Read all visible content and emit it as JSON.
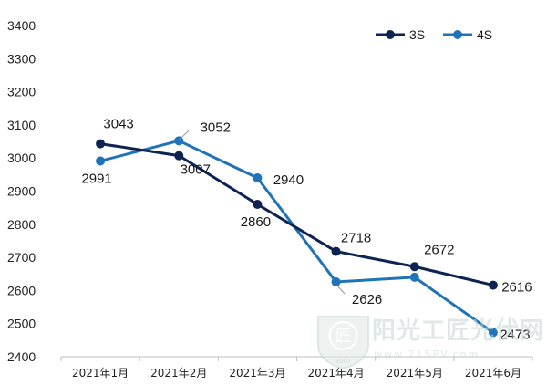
{
  "chart_data": {
    "type": "line",
    "categories": [
      "2021年1月",
      "2021年2月",
      "2021年3月",
      "2021年4月",
      "2021年5月",
      "2021年6月"
    ],
    "series": [
      {
        "name": "3S",
        "color": "#0d2452",
        "values": [
          3043,
          3007,
          2860,
          2718,
          2672,
          2616
        ]
      },
      {
        "name": "4S",
        "color": "#1f73b7",
        "values": [
          2991,
          3052,
          2940,
          2626,
          2640,
          2473
        ]
      }
    ],
    "data_labels": {
      "3S": [
        "3043",
        "3007",
        "2860",
        "2718",
        "2672",
        "2616"
      ],
      "4S": [
        "2991",
        "3052",
        "2940",
        "2626",
        "",
        "2473"
      ]
    },
    "title": "",
    "xlabel": "",
    "ylabel": "",
    "ylim": [
      2400,
      3400
    ],
    "yticks": [
      2400,
      2500,
      2600,
      2700,
      2800,
      2900,
      3000,
      3100,
      3200,
      3300,
      3400
    ],
    "grid": false,
    "legend_position": "top-right"
  },
  "watermark": {
    "text": "阳光工匠光伏网",
    "url_text": "www.21SPV.com",
    "badge_year": "2007",
    "badge_glyph": "匠"
  }
}
